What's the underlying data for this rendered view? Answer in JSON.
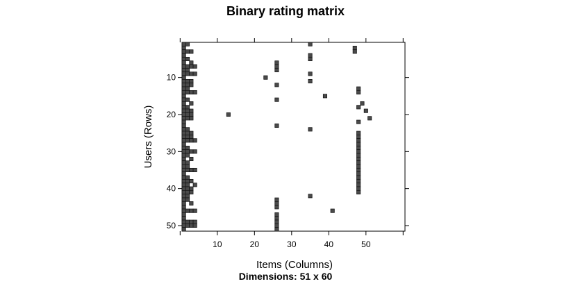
{
  "chart_data": {
    "type": "heatmap",
    "title": "Binary rating matrix",
    "xlabel": "Items (Columns)",
    "ylabel": "Users (Rows)",
    "subtitle": "Dimensions: 51 x 60",
    "xlim": [
      0.5,
      60.5
    ],
    "ylim": [
      51.5,
      0.5
    ],
    "xticks": [
      10,
      20,
      30,
      40,
      50
    ],
    "yticks": [
      10,
      20,
      30,
      40,
      50
    ],
    "cells": [
      [
        1,
        1
      ],
      [
        1,
        2
      ],
      [
        1,
        3
      ],
      [
        1,
        4
      ],
      [
        1,
        5
      ],
      [
        1,
        6
      ],
      [
        1,
        7
      ],
      [
        1,
        8
      ],
      [
        1,
        9
      ],
      [
        1,
        10
      ],
      [
        1,
        11
      ],
      [
        1,
        12
      ],
      [
        1,
        13
      ],
      [
        1,
        14
      ],
      [
        1,
        15
      ],
      [
        1,
        16
      ],
      [
        1,
        17
      ],
      [
        1,
        18
      ],
      [
        1,
        19
      ],
      [
        1,
        20
      ],
      [
        1,
        21
      ],
      [
        1,
        22
      ],
      [
        1,
        23
      ],
      [
        1,
        24
      ],
      [
        1,
        25
      ],
      [
        1,
        26
      ],
      [
        1,
        27
      ],
      [
        1,
        28
      ],
      [
        1,
        29
      ],
      [
        1,
        30
      ],
      [
        1,
        31
      ],
      [
        1,
        32
      ],
      [
        1,
        33
      ],
      [
        1,
        34
      ],
      [
        1,
        35
      ],
      [
        1,
        36
      ],
      [
        1,
        37
      ],
      [
        1,
        38
      ],
      [
        1,
        39
      ],
      [
        1,
        40
      ],
      [
        1,
        41
      ],
      [
        1,
        42
      ],
      [
        1,
        43
      ],
      [
        1,
        44
      ],
      [
        1,
        45
      ],
      [
        1,
        46
      ],
      [
        1,
        47
      ],
      [
        1,
        48
      ],
      [
        1,
        49
      ],
      [
        1,
        50
      ],
      [
        1,
        51
      ],
      [
        2,
        1
      ],
      [
        2,
        3
      ],
      [
        2,
        5
      ],
      [
        2,
        7
      ],
      [
        2,
        8
      ],
      [
        2,
        9
      ],
      [
        2,
        11
      ],
      [
        2,
        12
      ],
      [
        2,
        13
      ],
      [
        2,
        14
      ],
      [
        2,
        16
      ],
      [
        2,
        18
      ],
      [
        2,
        19
      ],
      [
        2,
        20
      ],
      [
        2,
        21
      ],
      [
        2,
        24
      ],
      [
        2,
        25
      ],
      [
        2,
        26
      ],
      [
        2,
        27
      ],
      [
        2,
        29
      ],
      [
        2,
        30
      ],
      [
        2,
        31
      ],
      [
        2,
        33
      ],
      [
        2,
        34
      ],
      [
        2,
        35
      ],
      [
        2,
        37
      ],
      [
        2,
        38
      ],
      [
        2,
        39
      ],
      [
        2,
        40
      ],
      [
        2,
        41
      ],
      [
        2,
        42
      ],
      [
        2,
        43
      ],
      [
        2,
        46
      ],
      [
        2,
        49
      ],
      [
        2,
        50
      ],
      [
        3,
        3
      ],
      [
        3,
        6
      ],
      [
        3,
        7
      ],
      [
        3,
        9
      ],
      [
        3,
        11
      ],
      [
        3,
        12
      ],
      [
        3,
        14
      ],
      [
        3,
        17
      ],
      [
        3,
        19
      ],
      [
        3,
        20
      ],
      [
        3,
        21
      ],
      [
        3,
        25
      ],
      [
        3,
        26
      ],
      [
        3,
        27
      ],
      [
        3,
        30
      ],
      [
        3,
        32
      ],
      [
        3,
        35
      ],
      [
        3,
        38
      ],
      [
        3,
        40
      ],
      [
        3,
        41
      ],
      [
        3,
        44
      ],
      [
        3,
        46
      ],
      [
        3,
        49
      ],
      [
        3,
        50
      ],
      [
        4,
        7
      ],
      [
        4,
        9
      ],
      [
        4,
        14
      ],
      [
        4,
        27
      ],
      [
        4,
        30
      ],
      [
        4,
        35
      ],
      [
        4,
        39
      ],
      [
        4,
        46
      ],
      [
        4,
        49
      ],
      [
        4,
        50
      ],
      [
        13,
        20
      ],
      [
        23,
        10
      ],
      [
        26,
        6
      ],
      [
        26,
        7
      ],
      [
        26,
        8
      ],
      [
        26,
        12
      ],
      [
        26,
        16
      ],
      [
        26,
        23
      ],
      [
        26,
        43
      ],
      [
        26,
        44
      ],
      [
        26,
        45
      ],
      [
        26,
        47
      ],
      [
        26,
        48
      ],
      [
        26,
        49
      ],
      [
        26,
        50
      ],
      [
        26,
        51
      ],
      [
        35,
        1
      ],
      [
        35,
        4
      ],
      [
        35,
        5
      ],
      [
        35,
        9
      ],
      [
        35,
        11
      ],
      [
        35,
        24
      ],
      [
        35,
        42
      ],
      [
        39,
        15
      ],
      [
        41,
        46
      ],
      [
        47,
        2
      ],
      [
        47,
        3
      ],
      [
        48,
        13
      ],
      [
        48,
        14
      ],
      [
        48,
        18
      ],
      [
        48,
        22
      ],
      [
        48,
        25
      ],
      [
        48,
        26
      ],
      [
        48,
        27
      ],
      [
        48,
        28
      ],
      [
        48,
        29
      ],
      [
        48,
        30
      ],
      [
        48,
        31
      ],
      [
        48,
        32
      ],
      [
        48,
        33
      ],
      [
        48,
        34
      ],
      [
        48,
        35
      ],
      [
        48,
        36
      ],
      [
        48,
        37
      ],
      [
        48,
        38
      ],
      [
        48,
        39
      ],
      [
        48,
        40
      ],
      [
        48,
        41
      ],
      [
        49,
        17
      ],
      [
        50,
        19
      ],
      [
        51,
        21
      ]
    ]
  }
}
